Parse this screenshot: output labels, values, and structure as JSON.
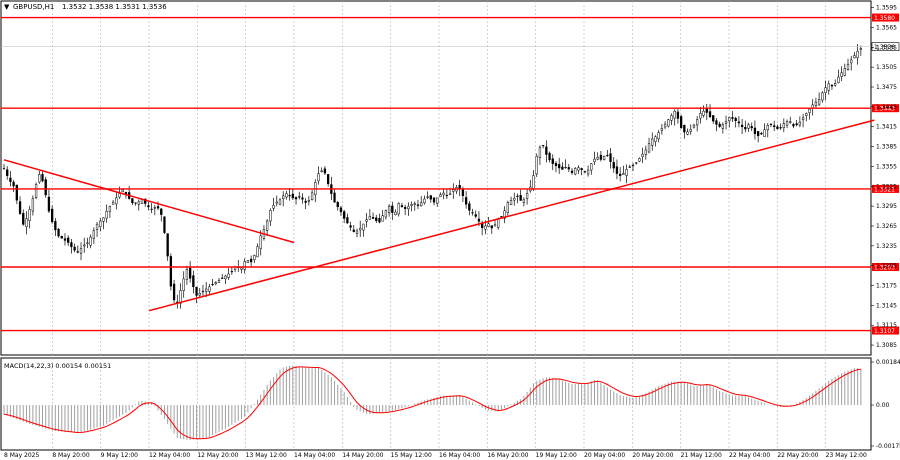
{
  "header": {
    "symbol": "GBPUSD,H1",
    "ohlc": "1.3532 1.3538 1.3531 1.3536"
  },
  "indicator": {
    "label": "MACD(14,22,3) 0.00154 0.00151",
    "ticks": [
      "0.00184",
      "0.00",
      "-0.00175"
    ]
  },
  "chart_data": {
    "type": "candlestick",
    "price_axis": {
      "min": 1.307,
      "max": 1.3605,
      "ticks": [
        "1.3595",
        "1.3565",
        "1.3535",
        "1.3505",
        "1.3475",
        "1.3445",
        "1.3415",
        "1.3385",
        "1.3355",
        "1.3325",
        "1.3295",
        "1.3265",
        "1.3235",
        "1.3205",
        "1.3175",
        "1.3145",
        "1.3115",
        "1.3085"
      ]
    },
    "time_axis": [
      "8 May 2025",
      "8 May 20:00",
      "9 May 12:00",
      "12 May 04:00",
      "12 May 20:00",
      "13 May 12:00",
      "14 May 04:00",
      "14 May 20:00",
      "15 May 12:00",
      "16 May 04:00",
      "16 May 20:00",
      "19 May 12:00",
      "20 May 04:00",
      "20 May 20:00",
      "21 May 12:00",
      "22 May 04:00",
      "22 May 20:00",
      "23 May 12:00"
    ],
    "levels": [
      {
        "value": 1.358,
        "label": "1.3580"
      },
      {
        "value": 1.3443,
        "label": "1.3443"
      },
      {
        "value": 1.3321,
        "label": "1.3321"
      },
      {
        "value": 1.3203,
        "label": "1.3203"
      },
      {
        "value": 1.3107,
        "label": "1.3107"
      }
    ],
    "current_price": {
      "value": 1.3536,
      "label": "1.3536"
    },
    "trendlines": [
      {
        "from": [
          "8 May 2025",
          1.3365
        ],
        "to": [
          "14 May 04:00",
          1.324
        ]
      },
      {
        "from": [
          "12 May 04:00",
          1.3137
        ],
        "to": [
          "23 May 20:00",
          1.3425
        ]
      }
    ],
    "price_path": [
      [
        0,
        1.3352
      ],
      [
        4,
        1.3335
      ],
      [
        8,
        1.3325
      ],
      [
        12,
        1.329
      ],
      [
        16,
        1.3265
      ],
      [
        20,
        1.3285
      ],
      [
        24,
        1.331
      ],
      [
        28,
        1.3345
      ],
      [
        32,
        1.333
      ],
      [
        36,
        1.329
      ],
      [
        40,
        1.3265
      ],
      [
        44,
        1.325
      ],
      [
        48,
        1.3245
      ],
      [
        52,
        1.324
      ],
      [
        56,
        1.323
      ],
      [
        60,
        1.3225
      ],
      [
        64,
        1.3235
      ],
      [
        68,
        1.324
      ],
      [
        72,
        1.3255
      ],
      [
        76,
        1.327
      ],
      [
        80,
        1.3275
      ],
      [
        84,
        1.329
      ],
      [
        88,
        1.33
      ],
      [
        92,
        1.331
      ],
      [
        96,
        1.332
      ],
      [
        100,
        1.331
      ],
      [
        104,
        1.33
      ],
      [
        108,
        1.33
      ],
      [
        112,
        1.3305
      ],
      [
        116,
        1.3295
      ],
      [
        120,
        1.329
      ],
      [
        124,
        1.3295
      ],
      [
        128,
        1.328
      ],
      [
        132,
        1.323
      ],
      [
        136,
        1.316
      ],
      [
        140,
        1.3145
      ],
      [
        144,
        1.3175
      ],
      [
        148,
        1.32
      ],
      [
        152,
        1.318
      ],
      [
        156,
        1.316
      ],
      [
        160,
        1.3165
      ],
      [
        164,
        1.317
      ],
      [
        168,
        1.3175
      ],
      [
        172,
        1.318
      ],
      [
        176,
        1.3185
      ],
      [
        180,
        1.319
      ],
      [
        184,
        1.3195
      ],
      [
        188,
        1.3205
      ],
      [
        192,
        1.32
      ],
      [
        196,
        1.3215
      ],
      [
        200,
        1.321
      ],
      [
        204,
        1.3225
      ],
      [
        208,
        1.325
      ],
      [
        212,
        1.3265
      ],
      [
        216,
        1.329
      ],
      [
        220,
        1.33
      ],
      [
        224,
        1.3305
      ],
      [
        228,
        1.3315
      ],
      [
        232,
        1.331
      ],
      [
        236,
        1.3305
      ],
      [
        240,
        1.331
      ],
      [
        244,
        1.33
      ],
      [
        248,
        1.3305
      ],
      [
        252,
        1.333
      ],
      [
        256,
        1.335
      ],
      [
        260,
        1.3345
      ],
      [
        264,
        1.332
      ],
      [
        268,
        1.33
      ],
      [
        272,
        1.329
      ],
      [
        276,
        1.3275
      ],
      [
        280,
        1.3265
      ],
      [
        284,
        1.3255
      ],
      [
        288,
        1.326
      ],
      [
        292,
        1.327
      ],
      [
        296,
        1.328
      ],
      [
        300,
        1.3275
      ],
      [
        304,
        1.327
      ],
      [
        308,
        1.3285
      ],
      [
        312,
        1.3295
      ],
      [
        316,
        1.328
      ],
      [
        320,
        1.33
      ],
      [
        324,
        1.329
      ],
      [
        328,
        1.3295
      ],
      [
        332,
        1.33
      ],
      [
        336,
        1.3295
      ],
      [
        340,
        1.3305
      ],
      [
        344,
        1.331
      ],
      [
        348,
        1.33
      ],
      [
        352,
        1.331
      ],
      [
        356,
        1.3315
      ],
      [
        360,
        1.331
      ],
      [
        364,
        1.332
      ],
      [
        368,
        1.3325
      ],
      [
        372,
        1.331
      ],
      [
        376,
        1.329
      ],
      [
        380,
        1.3285
      ],
      [
        384,
        1.3275
      ],
      [
        388,
        1.326
      ],
      [
        392,
        1.327
      ],
      [
        396,
        1.326
      ],
      [
        400,
        1.3275
      ],
      [
        404,
        1.328
      ],
      [
        408,
        1.33
      ],
      [
        412,
        1.3305
      ],
      [
        416,
        1.331
      ],
      [
        420,
        1.33
      ],
      [
        424,
        1.3315
      ],
      [
        428,
        1.333
      ],
      [
        432,
        1.3375
      ],
      [
        436,
        1.339
      ],
      [
        440,
        1.337
      ],
      [
        444,
        1.336
      ],
      [
        448,
        1.3355
      ],
      [
        452,
        1.335
      ],
      [
        456,
        1.3355
      ],
      [
        460,
        1.3345
      ],
      [
        464,
        1.3355
      ],
      [
        468,
        1.335
      ],
      [
        472,
        1.3345
      ],
      [
        476,
        1.336
      ],
      [
        480,
        1.337
      ],
      [
        484,
        1.3365
      ],
      [
        488,
        1.3375
      ],
      [
        492,
        1.336
      ],
      [
        496,
        1.3345
      ],
      [
        500,
        1.334
      ],
      [
        504,
        1.335
      ],
      [
        508,
        1.3355
      ],
      [
        512,
        1.336
      ],
      [
        516,
        1.337
      ],
      [
        520,
        1.338
      ],
      [
        524,
        1.3395
      ],
      [
        528,
        1.34
      ],
      [
        532,
        1.341
      ],
      [
        536,
        1.342
      ],
      [
        540,
        1.343
      ],
      [
        544,
        1.344
      ],
      [
        548,
        1.3415
      ],
      [
        552,
        1.3405
      ],
      [
        556,
        1.341
      ],
      [
        560,
        1.342
      ],
      [
        564,
        1.3435
      ],
      [
        568,
        1.344
      ],
      [
        572,
        1.343
      ],
      [
        576,
        1.342
      ],
      [
        580,
        1.3415
      ],
      [
        584,
        1.342
      ],
      [
        588,
        1.343
      ],
      [
        592,
        1.3425
      ],
      [
        596,
        1.342
      ],
      [
        600,
        1.341
      ],
      [
        604,
        1.342
      ],
      [
        608,
        1.3405
      ],
      [
        612,
        1.34
      ],
      [
        616,
        1.341
      ],
      [
        620,
        1.342
      ],
      [
        624,
        1.3415
      ],
      [
        628,
        1.341
      ],
      [
        632,
        1.342
      ],
      [
        636,
        1.3425
      ],
      [
        640,
        1.3415
      ],
      [
        644,
        1.342
      ],
      [
        648,
        1.343
      ],
      [
        652,
        1.344
      ],
      [
        656,
        1.345
      ],
      [
        660,
        1.3455
      ],
      [
        664,
        1.347
      ],
      [
        668,
        1.348
      ],
      [
        672,
        1.3475
      ],
      [
        676,
        1.349
      ],
      [
        680,
        1.35
      ],
      [
        684,
        1.351
      ],
      [
        688,
        1.352
      ],
      [
        692,
        1.353
      ],
      [
        696,
        1.3536
      ]
    ],
    "macd_hist": [
      [
        0,
        -0.0004
      ],
      [
        20,
        -0.0008
      ],
      [
        40,
        -0.0011
      ],
      [
        60,
        -0.0012
      ],
      [
        80,
        -0.0009
      ],
      [
        100,
        -0.0003
      ],
      [
        110,
        0.0002
      ],
      [
        120,
        0.0001
      ],
      [
        130,
        -0.0006
      ],
      [
        140,
        -0.0014
      ],
      [
        150,
        -0.0015
      ],
      [
        165,
        -0.0014
      ],
      [
        180,
        -0.001
      ],
      [
        195,
        -0.0005
      ],
      [
        205,
        0.0002
      ],
      [
        215,
        0.001
      ],
      [
        225,
        0.0016
      ],
      [
        235,
        0.0017
      ],
      [
        245,
        0.0016
      ],
      [
        255,
        0.0016
      ],
      [
        265,
        0.0012
      ],
      [
        275,
        0.0006
      ],
      [
        285,
        -0.0002
      ],
      [
        295,
        -0.0004
      ],
      [
        310,
        -0.0003
      ],
      [
        325,
        -0.0001
      ],
      [
        340,
        0.0002
      ],
      [
        355,
        0.0004
      ],
      [
        370,
        0.0004
      ],
      [
        380,
        0.0001
      ],
      [
        390,
        -0.0002
      ],
      [
        400,
        -0.0003
      ],
      [
        410,
        0.0
      ],
      [
        420,
        0.0003
      ],
      [
        430,
        0.001
      ],
      [
        440,
        0.0012
      ],
      [
        450,
        0.0011
      ],
      [
        460,
        0.0009
      ],
      [
        470,
        0.0009
      ],
      [
        480,
        0.0011
      ],
      [
        490,
        0.0007
      ],
      [
        500,
        0.0004
      ],
      [
        510,
        0.0003
      ],
      [
        520,
        0.0005
      ],
      [
        530,
        0.0008
      ],
      [
        540,
        0.001
      ],
      [
        550,
        0.001
      ],
      [
        560,
        0.0008
      ],
      [
        570,
        0.0009
      ],
      [
        580,
        0.0006
      ],
      [
        590,
        0.0004
      ],
      [
        600,
        0.0004
      ],
      [
        610,
        0.0002
      ],
      [
        620,
        0.0
      ],
      [
        630,
        -0.0001
      ],
      [
        640,
        0.0
      ],
      [
        650,
        0.0003
      ],
      [
        660,
        0.0007
      ],
      [
        670,
        0.0011
      ],
      [
        680,
        0.0014
      ],
      [
        690,
        0.0016
      ],
      [
        696,
        0.00154
      ]
    ]
  },
  "colors": {
    "level_line": "#ff0000",
    "trendline": "#ff0000",
    "candle": "#000000",
    "grid": "#b4b4b4",
    "macd_hist": "#a0a0a0",
    "macd_signal": "#ff0000"
  }
}
